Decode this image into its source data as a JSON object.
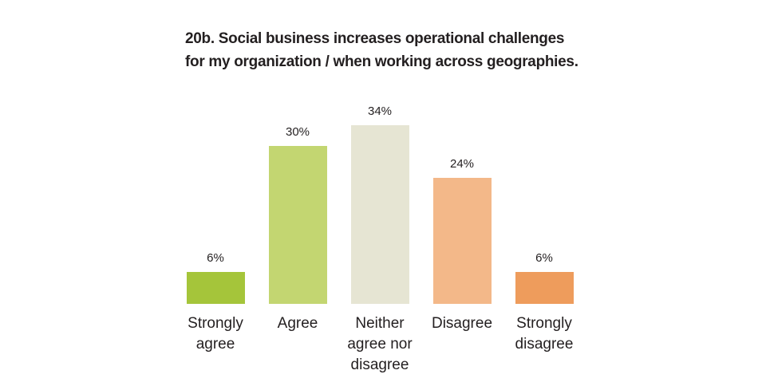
{
  "chart_data": {
    "type": "bar",
    "title": "20b. Social business increases operational challenges for my organization / when working across geographies.",
    "categories": [
      "Strongly agree",
      "Agree",
      "Neither agree nor disagree",
      "Disagree",
      "Strongly disagree"
    ],
    "values": [
      6,
      30,
      34,
      24,
      6
    ],
    "value_labels": [
      "6%",
      "30%",
      "34%",
      "24%",
      "6%"
    ],
    "colors": [
      "#a5c53a",
      "#c3d671",
      "#e6e5d3",
      "#f3b889",
      "#ee9c5c"
    ]
  }
}
